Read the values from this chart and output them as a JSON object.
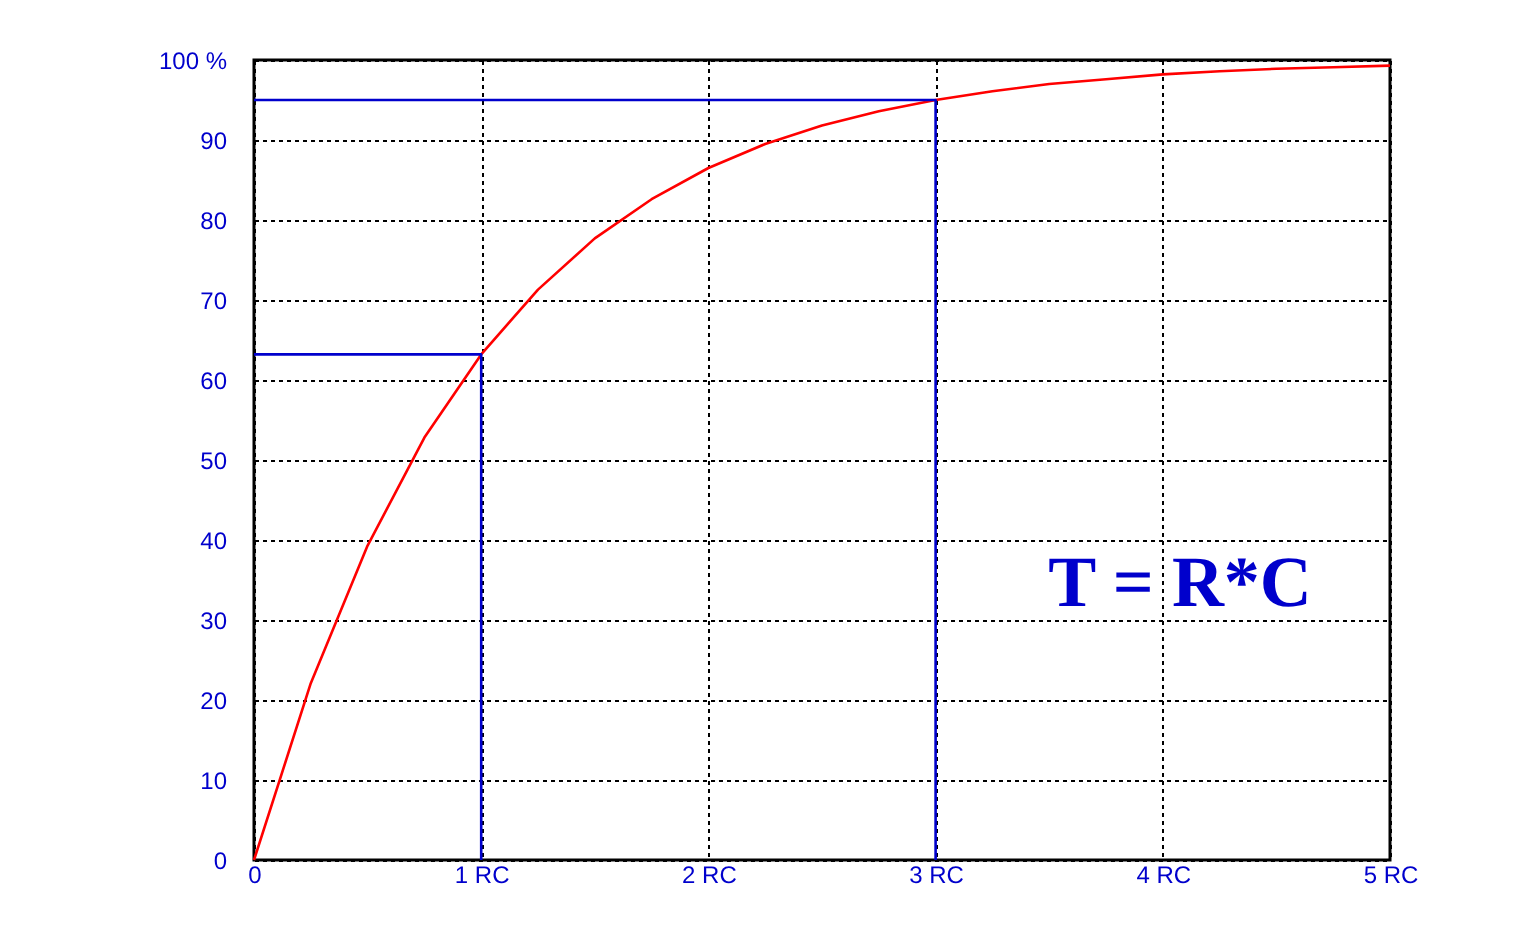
{
  "chart_data": {
    "type": "line",
    "xlim": [
      0,
      5
    ],
    "ylim": [
      0,
      100
    ],
    "xticks": [
      0,
      {
        "value": 1,
        "label": "1 RC"
      },
      {
        "value": 2,
        "label": "2 RC"
      },
      {
        "value": 3,
        "label": "3 RC"
      },
      {
        "value": 4,
        "label": "4 RC"
      },
      {
        "value": 5,
        "label": "5 RC"
      }
    ],
    "yticks": [
      0,
      10,
      20,
      30,
      40,
      50,
      60,
      70,
      80,
      90,
      {
        "value": 100,
        "label": "100 %"
      }
    ],
    "grid": true,
    "line_style": "solid",
    "marker": "none",
    "series": [
      {
        "color": "#ff0000",
        "x": [
          0,
          0.25,
          0.5,
          0.75,
          1,
          1.25,
          1.5,
          1.75,
          2,
          2.25,
          2.5,
          2.75,
          3,
          3.25,
          3.5,
          3.75,
          4,
          4.25,
          4.5,
          4.75,
          5
        ],
        "values": [
          0,
          22.1,
          39.3,
          52.8,
          63.2,
          71.3,
          77.7,
          82.6,
          86.5,
          89.5,
          91.8,
          93.6,
          95.0,
          96.1,
          97.0,
          97.6,
          98.2,
          98.6,
          98.9,
          99.1,
          99.3
        ]
      },
      {
        "color": "#0000cc",
        "x": [
          0,
          1,
          1
        ],
        "values": [
          63.2,
          63.2,
          0
        ]
      },
      {
        "color": "#0000cc",
        "x": [
          0,
          3,
          3
        ],
        "values": [
          95,
          95,
          0
        ]
      }
    ],
    "annotations": [
      "T = R*C"
    ]
  }
}
